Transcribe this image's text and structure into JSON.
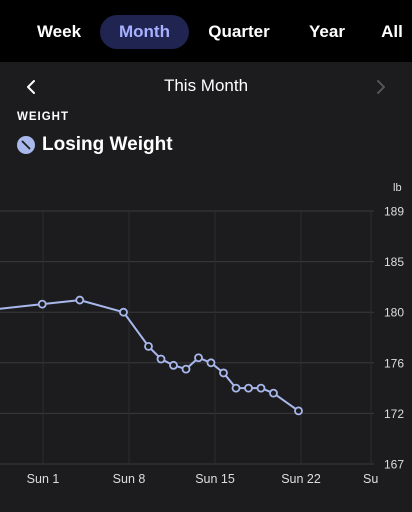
{
  "tabs": [
    {
      "label": "Week",
      "active": false
    },
    {
      "label": "Month",
      "active": true
    },
    {
      "label": "Quarter",
      "active": false
    },
    {
      "label": "Year",
      "active": false
    },
    {
      "label": "All",
      "active": false
    }
  ],
  "nav": {
    "prev_icon": "chevron-left-icon",
    "next_icon": "chevron-right-icon",
    "title": "This Month"
  },
  "metric": {
    "label": "WEIGHT",
    "status": "Losing Weight",
    "status_icon": "trend-down-icon",
    "unit": "lb"
  },
  "colors": {
    "accent": "#a8b0ff",
    "line": "#a8b8ec",
    "active_tab_bg": "#1f2450"
  },
  "chart_data": {
    "type": "line",
    "x_ticks": [
      "Sun 1",
      "Sun 8",
      "Sun 15",
      "Sun 22",
      "Su"
    ],
    "y_ticks": [
      189,
      185,
      180,
      176,
      172,
      167
    ],
    "series": [
      {
        "points": [
          {
            "day": 0.5,
            "y": 180.8
          },
          {
            "day": 3.5,
            "y": 181.2
          },
          {
            "day": 7.0,
            "y": 180.0
          },
          {
            "day": 9.0,
            "y": 177.3
          },
          {
            "day": 10.0,
            "y": 176.3
          },
          {
            "day": 11.0,
            "y": 175.8
          },
          {
            "day": 12.0,
            "y": 175.5
          },
          {
            "day": 13.0,
            "y": 176.4
          },
          {
            "day": 14.0,
            "y": 176.0
          },
          {
            "day": 15.0,
            "y": 175.2
          },
          {
            "day": 16.0,
            "y": 174.0
          },
          {
            "day": 17.0,
            "y": 174.0
          },
          {
            "day": 18.0,
            "y": 174.0
          },
          {
            "day": 19.0,
            "y": 173.6
          },
          {
            "day": 21.0,
            "y": 172.2
          }
        ]
      }
    ]
  }
}
